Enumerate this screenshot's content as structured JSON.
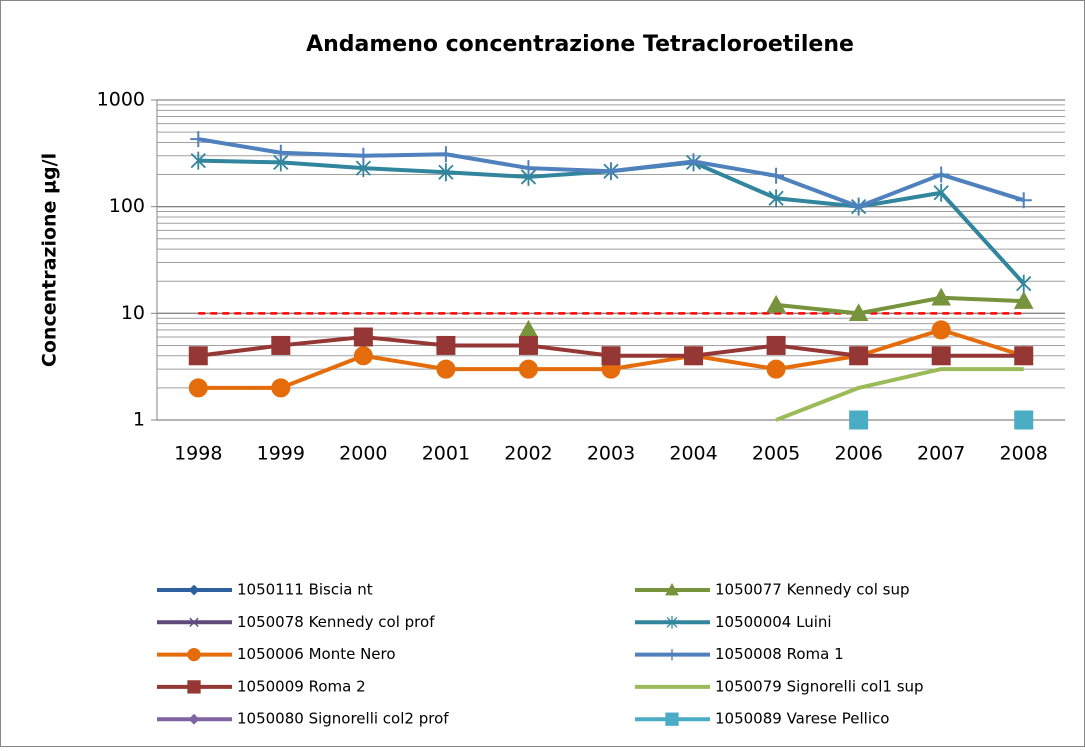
{
  "chart_data": {
    "type": "line",
    "title": "Andameno concentrazione Tetracloroetilene",
    "y_label": "Concentrazione µg/l",
    "categories": [
      "1998",
      "1999",
      "2000",
      "2001",
      "2002",
      "2003",
      "2004",
      "2005",
      "2006",
      "2007",
      "2008"
    ],
    "log_scale": true,
    "ylim": [
      1,
      1000
    ],
    "yticks": [
      1,
      10,
      100,
      1000
    ],
    "grid": true,
    "threshold": {
      "value": 10,
      "color": "#ff0000"
    },
    "series": [
      {
        "name": "1050111 Biscia nt",
        "color": "#2e5f9e",
        "marker": "diamond",
        "line": true,
        "values": [
          null,
          null,
          null,
          null,
          null,
          null,
          null,
          null,
          null,
          null,
          null
        ]
      },
      {
        "name": "1050077 Kennedy col sup",
        "color": "#77933c",
        "marker": "triangle",
        "line": true,
        "values": [
          null,
          null,
          null,
          null,
          7,
          null,
          null,
          12,
          10,
          14,
          13
        ]
      },
      {
        "name": "1050078 Kennedy col prof",
        "color": "#604a7b",
        "marker": "x",
        "line": true,
        "values": [
          null,
          null,
          null,
          null,
          null,
          null,
          null,
          null,
          null,
          null,
          null
        ]
      },
      {
        "name": "10500004 Luini",
        "color": "#31859c",
        "marker": "star",
        "line": true,
        "values": [
          270,
          260,
          230,
          210,
          190,
          215,
          260,
          120,
          100,
          135,
          19
        ]
      },
      {
        "name": "1050006 Monte Nero",
        "color": "#e46c0a",
        "marker": "circle",
        "line": true,
        "values": [
          2,
          2,
          4,
          3,
          3,
          3,
          4,
          3,
          4,
          7,
          4
        ]
      },
      {
        "name": "1050008 Roma 1",
        "color": "#4f81bd",
        "marker": "plus",
        "line": true,
        "values": [
          430,
          320,
          300,
          310,
          230,
          215,
          265,
          195,
          100,
          200,
          115
        ]
      },
      {
        "name": "1050009 Roma 2",
        "color": "#953735",
        "marker": "square",
        "line": true,
        "values": [
          4,
          5,
          6,
          5,
          5,
          4,
          4,
          5,
          4,
          4,
          4
        ]
      },
      {
        "name": "1050079 Signorelli col1 sup",
        "color": "#9bbb59",
        "marker": "none",
        "line": true,
        "values": [
          null,
          null,
          null,
          null,
          null,
          null,
          null,
          1,
          2,
          3,
          3
        ]
      },
      {
        "name": "1050080 Signorelli col2 prof",
        "color": "#8064a2",
        "marker": "diamond",
        "line": true,
        "values": [
          null,
          null,
          null,
          null,
          null,
          null,
          null,
          null,
          null,
          null,
          null
        ]
      },
      {
        "name": "1050089 Varese Pellico",
        "color": "#4bacc6",
        "marker": "square",
        "line": true,
        "values": [
          null,
          null,
          null,
          null,
          null,
          null,
          null,
          null,
          1,
          null,
          1
        ]
      }
    ]
  }
}
